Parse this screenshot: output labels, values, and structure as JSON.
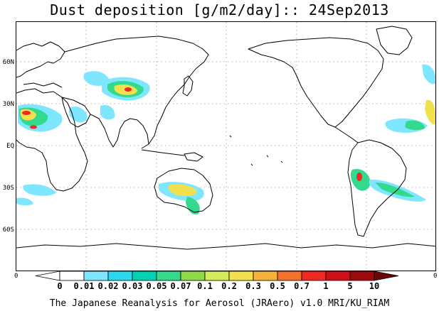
{
  "title": "Dust deposition [g/m2/day]:: 24Sep2013",
  "latitude_labels": [
    "60N",
    "30N",
    "EQ",
    "30S",
    "60S"
  ],
  "corner_labels": {
    "left": "0",
    "right": "0"
  },
  "colorbar": {
    "labels": [
      "0",
      "0.01",
      "0.02",
      "0.03",
      "0.05",
      "0.07",
      "0.1",
      "0.2",
      "0.3",
      "0.5",
      "0.7",
      "1",
      "5",
      "10"
    ],
    "colors": [
      "#ffffff",
      "#ffffff",
      "#7ee6ff",
      "#2cd7f0",
      "#00d3b4",
      "#33d98c",
      "#8fd94a",
      "#d2ec5a",
      "#f2e04c",
      "#f7b23a",
      "#f4702c",
      "#ee2a22",
      "#cc1016",
      "#9c0a0e",
      "#6a0508"
    ]
  },
  "footer": "The Japanese Reanalysis for Aerosol (JRAero) v1.0 MRI/KU_RIAM",
  "colors": {
    "coast": "#000000",
    "grid": "#9a9a9a",
    "dust_low": "#7ee6ff",
    "dust_mid": "#33d98c",
    "dust_high": "#f2e04c",
    "dust_peak": "#ee2a22"
  }
}
